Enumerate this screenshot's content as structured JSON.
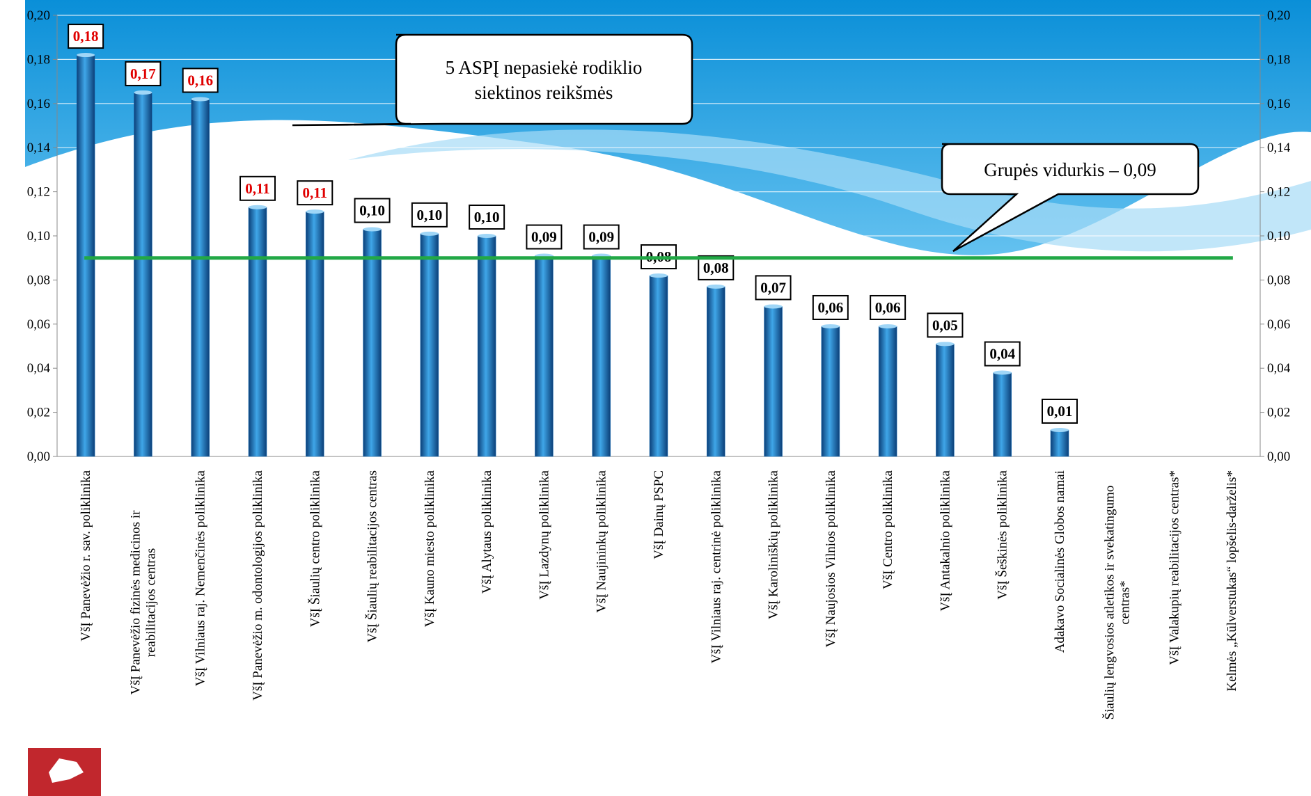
{
  "chart_data": {
    "type": "bar",
    "categories": [
      "VšĮ Panevėžio r. sav. poliklinika",
      [
        "VšĮ Panevėžio fizinės medicinos ir",
        "reabilitacijos centras"
      ],
      "VšĮ Vilniaus raj. Nemenčinės poliklinika",
      "VšĮ Panevėžio m. odontologijos poliklinika",
      "VšĮ Šiaulių centro poliklinika",
      "VšĮ Šiaulių reabilitacijos centras",
      "VšĮ Kauno miesto poliklinika",
      "VšĮ Alytaus poliklinika",
      "VšĮ Lazdynų poliklinika",
      "VšĮ Naujininkų poliklinika",
      "VšĮ Dainų PSPC",
      "VšĮ Vilniaus raj. centrinė poliklinika",
      "VšĮ Karoliniškių poliklinika",
      "VšĮ Naujosios Vilnios poliklinika",
      "VšĮ Centro poliklinika",
      "VšĮ Antakalnio poliklinika",
      "VšĮ Šeškinės poliklinika",
      "Adakavo Socialinės Globos namai",
      [
        "Šiaulių lengvosios atletikos ir svekatingumo",
        "centras*"
      ],
      "VšĮ Valakupių reabilitacijos centras*",
      "Kelmės „Kūlverstukas“ lopšelis-darželis*"
    ],
    "values": [
      0.182,
      0.165,
      0.162,
      0.113,
      0.111,
      0.103,
      0.101,
      0.1,
      0.091,
      0.091,
      0.082,
      0.077,
      0.068,
      0.059,
      0.059,
      0.051,
      0.038,
      0.012,
      null,
      null,
      null
    ],
    "value_labels": [
      "0,18",
      "0,17",
      "0,16",
      "0,11",
      "0,11",
      "0,10",
      "0,10",
      "0,10",
      "0,09",
      "0,09",
      "0,08",
      "0,08",
      "0,07",
      "0,06",
      "0,06",
      "0,05",
      "0,04",
      "0,01",
      null,
      null,
      null
    ],
    "value_label_colors": [
      "#e00000",
      "#e00000",
      "#e00000",
      "#e00000",
      "#e00000",
      "#000000",
      "#000000",
      "#000000",
      "#000000",
      "#000000",
      "#000000",
      "#000000",
      "#000000",
      "#000000",
      "#000000",
      "#000000",
      "#000000",
      "#000000",
      null,
      null,
      null
    ],
    "color": "#1f78c0",
    "ylim": [
      0,
      0.2
    ],
    "yticks": [
      {
        "value": 0,
        "label": "0,00"
      },
      {
        "value": 0.02,
        "label": "0,02"
      },
      {
        "value": 0.04,
        "label": "0,04"
      },
      {
        "value": 0.06,
        "label": "0,06"
      },
      {
        "value": 0.08,
        "label": "0,08"
      },
      {
        "value": 0.1,
        "label": "0,10"
      },
      {
        "value": 0.12,
        "label": "0,12"
      },
      {
        "value": 0.14,
        "label": "0,14"
      },
      {
        "value": 0.16,
        "label": "0,16"
      },
      {
        "value": 0.18,
        "label": "0,18"
      },
      {
        "value": 0.2,
        "label": "0,20"
      }
    ],
    "grid": true,
    "average": 0.09,
    "average_color": "#22a846",
    "annotations": [
      [
        "5 ASPĮ nepasiekė rodiklio",
        "siektinos reikšmės"
      ],
      [
        "Grupės vidurkis – 0,09"
      ]
    ]
  }
}
